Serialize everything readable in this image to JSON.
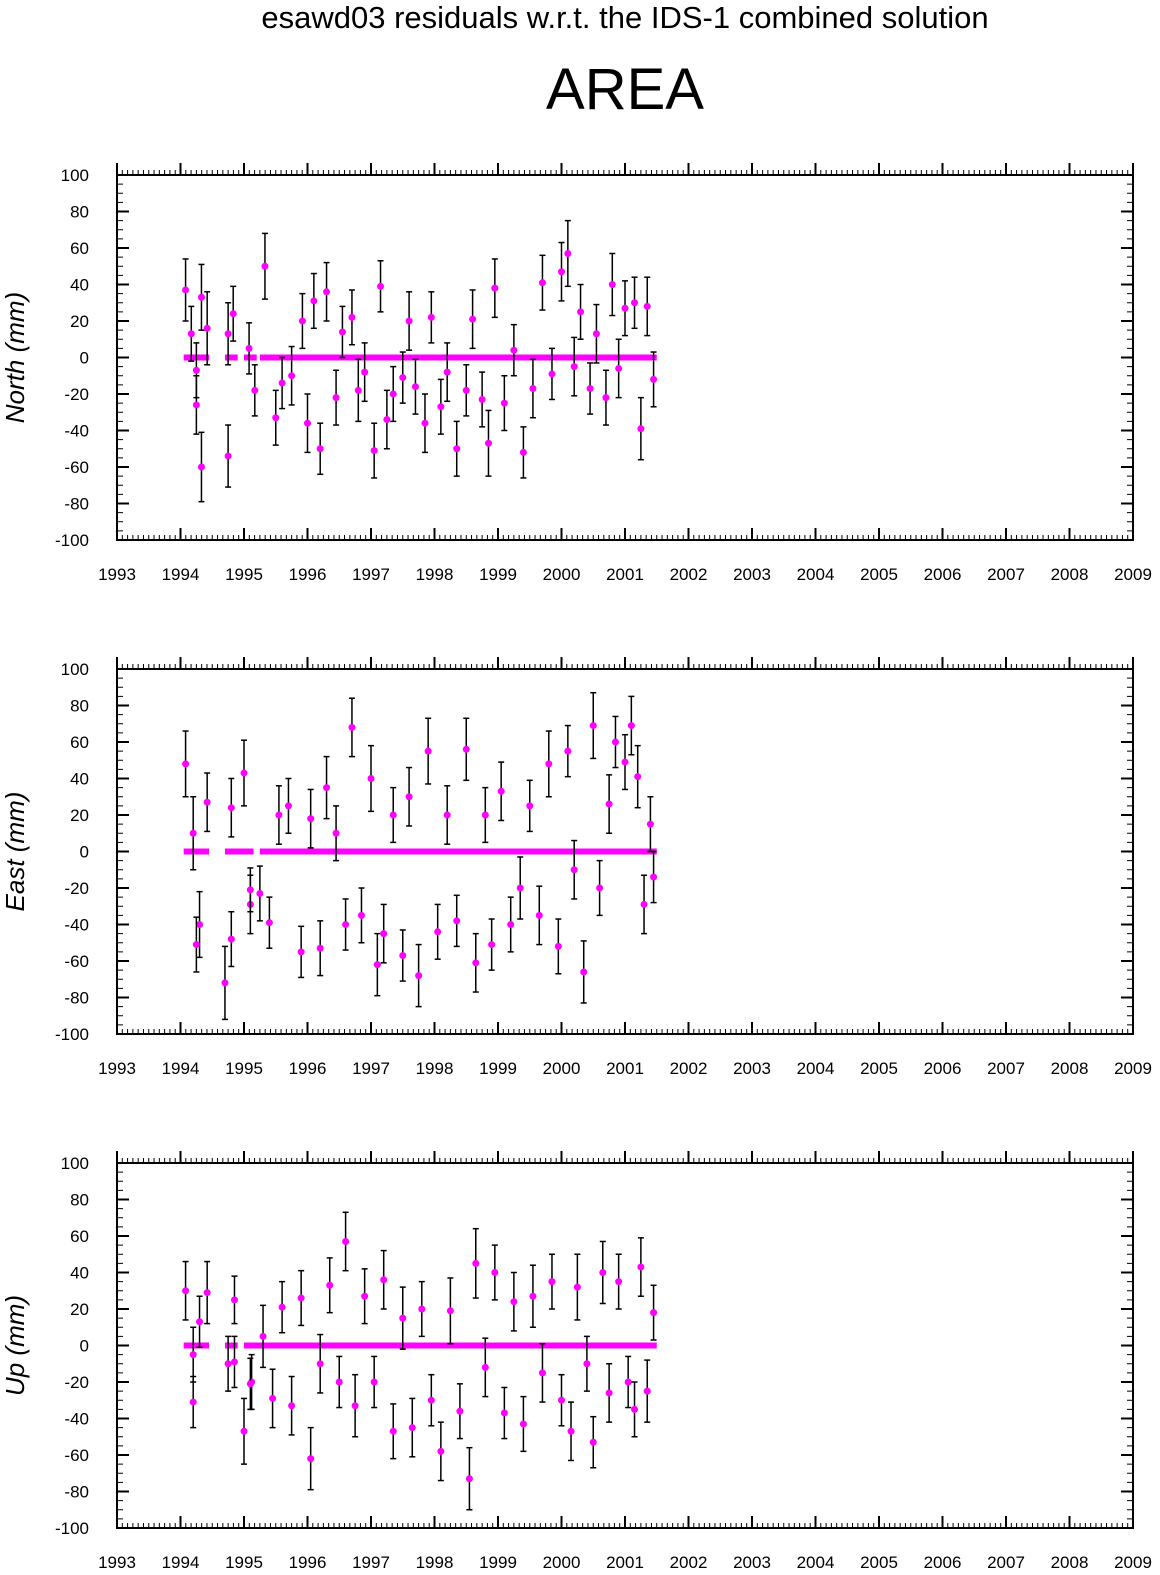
{
  "title": "esawd03 residuals w.r.t. the IDS-1 combined solution",
  "subtitle": "AREA",
  "colors": {
    "series": "#ff00ff",
    "errorbar": "#000000",
    "frame": "#000000"
  },
  "chart_data": [
    {
      "type": "scatter",
      "panel": "north",
      "ylabel": "North (mm)",
      "xlim": [
        1993,
        2009
      ],
      "ylim": [
        -100,
        100
      ],
      "xticks": [
        "1993",
        "1994",
        "1995",
        "1996",
        "1997",
        "1998",
        "1999",
        "2000",
        "2001",
        "2002",
        "2003",
        "2004",
        "2005",
        "2006",
        "2007",
        "2008",
        "2009"
      ],
      "yticks": [
        "100",
        "80",
        "60",
        "40",
        "20",
        "0",
        "-20",
        "-40",
        "-60",
        "-80",
        "-100"
      ],
      "series": [
        {
          "x": [
            1994.08,
            1994.17,
            1994.25,
            1994.33,
            1994.42,
            1994.75,
            1994.83,
            1995.08,
            1995.17,
            1995.33,
            1995.5,
            1995.6,
            1995.75,
            1995.92,
            1996.0,
            1996.1,
            1996.2,
            1996.3,
            1996.45,
            1996.55,
            1996.7,
            1996.8,
            1996.9,
            1997.05,
            1997.15,
            1997.25,
            1997.35,
            1997.5,
            1997.6,
            1997.7,
            1997.85,
            1997.95,
            1998.1,
            1998.2,
            1998.35,
            1998.5,
            1998.6,
            1998.75,
            1998.85,
            1998.95,
            1999.1,
            1999.25,
            1999.4,
            1999.55,
            1999.7,
            1999.85,
            2000.0,
            2000.1,
            2000.2,
            2000.3,
            2000.45,
            2000.55,
            2000.7,
            2000.8,
            2000.9,
            2001.0,
            2001.15,
            2001.25,
            2001.35,
            2001.45
          ],
          "y": [
            37,
            13,
            -26,
            33,
            16,
            13,
            24,
            5,
            -18,
            50,
            -33,
            -14,
            -10,
            20,
            -36,
            31,
            -50,
            36,
            -22,
            14,
            22,
            -18,
            -8,
            -51,
            39,
            -34,
            -20,
            -11,
            20,
            -16,
            -36,
            22,
            -27,
            -8,
            -50,
            -18,
            21,
            -23,
            -47,
            38,
            -25,
            4,
            -52,
            -17,
            41,
            -9,
            47,
            57,
            -5,
            25,
            -17,
            13,
            -22,
            40,
            -6,
            27,
            30,
            -39,
            28,
            -12
          ],
          "err": [
            17,
            15,
            16,
            18,
            20,
            17,
            15,
            14,
            14,
            18,
            15,
            14,
            16,
            15,
            16,
            15,
            14,
            16,
            15,
            14,
            15,
            17,
            16,
            15,
            14,
            16,
            15,
            14,
            16,
            15,
            16,
            14,
            15,
            16,
            15,
            14,
            16,
            15,
            18,
            16,
            15,
            14,
            14,
            16,
            15,
            14,
            16,
            18,
            16,
            15,
            14,
            16,
            15,
            17,
            16,
            15,
            14,
            17,
            16,
            15
          ]
        },
        {
          "x": [
            1994.25,
            1994.33,
            1994.75
          ],
          "y": [
            -7,
            -60,
            -54
          ],
          "err": [
            15,
            19,
            17
          ]
        }
      ],
      "zero_segments": [
        [
          1994.05,
          1994.45
        ],
        [
          1994.7,
          1994.9
        ],
        [
          1995.0,
          1995.2
        ],
        [
          1995.25,
          2001.5
        ]
      ]
    },
    {
      "type": "scatter",
      "panel": "east",
      "ylabel": "East (mm)",
      "xlim": [
        1993,
        2009
      ],
      "ylim": [
        -100,
        100
      ],
      "xticks": [
        "1993",
        "1994",
        "1995",
        "1996",
        "1997",
        "1998",
        "1999",
        "2000",
        "2001",
        "2002",
        "2003",
        "2004",
        "2005",
        "2006",
        "2007",
        "2008",
        "2009"
      ],
      "yticks": [
        "100",
        "80",
        "60",
        "40",
        "20",
        "0",
        "-20",
        "-40",
        "-60",
        "-80",
        "-100"
      ],
      "series": [
        {
          "x": [
            1994.08,
            1994.2,
            1994.3,
            1994.42,
            1994.7,
            1994.8,
            1995.0,
            1995.1,
            1995.25,
            1995.4,
            1995.55,
            1995.7,
            1995.9,
            1996.05,
            1996.2,
            1996.3,
            1996.45,
            1996.6,
            1996.7,
            1996.85,
            1997.0,
            1997.1,
            1997.2,
            1997.35,
            1997.5,
            1997.6,
            1997.75,
            1997.9,
            1998.05,
            1998.2,
            1998.35,
            1998.5,
            1998.65,
            1998.8,
            1998.9,
            1999.05,
            1999.2,
            1999.35,
            1999.5,
            1999.65,
            1999.8,
            1999.95,
            2000.1,
            2000.2,
            2000.35,
            2000.5,
            2000.6,
            2000.75,
            2000.85,
            2001.0,
            2001.1,
            2001.2,
            2001.3,
            2001.4,
            2001.45
          ],
          "y": [
            48,
            10,
            -40,
            27,
            -72,
            24,
            43,
            -29,
            -23,
            -39,
            20,
            25,
            -55,
            18,
            -53,
            35,
            10,
            -40,
            68,
            -35,
            40,
            -62,
            -45,
            20,
            -57,
            30,
            -68,
            55,
            -44,
            20,
            -38,
            56,
            -61,
            20,
            -51,
            33,
            -40,
            -20,
            25,
            -35,
            48,
            -52,
            55,
            -10,
            -66,
            69,
            -20,
            26,
            60,
            49,
            69,
            41,
            -29,
            15,
            -14
          ],
          "err": [
            18,
            20,
            18,
            16,
            20,
            16,
            18,
            16,
            15,
            14,
            16,
            15,
            14,
            16,
            15,
            17,
            15,
            14,
            16,
            15,
            18,
            17,
            16,
            15,
            14,
            16,
            17,
            18,
            15,
            16,
            14,
            17,
            16,
            15,
            14,
            16,
            15,
            17,
            14,
            16,
            18,
            15,
            14,
            16,
            17,
            18,
            15,
            16,
            14,
            15,
            16,
            17,
            16,
            15,
            14
          ]
        },
        {
          "x": [
            1994.25,
            1994.8,
            1995.1
          ],
          "y": [
            -51,
            -48,
            -21
          ],
          "err": [
            15,
            15,
            12
          ]
        }
      ],
      "zero_segments": [
        [
          1994.05,
          1994.45
        ],
        [
          1994.7,
          1995.15
        ],
        [
          1995.25,
          2001.5
        ]
      ]
    },
    {
      "type": "scatter",
      "panel": "up",
      "ylabel": "Up (mm)",
      "xlim": [
        1993,
        2009
      ],
      "ylim": [
        -100,
        100
      ],
      "xticks": [
        "1993",
        "1994",
        "1995",
        "1996",
        "1997",
        "1998",
        "1999",
        "2000",
        "2001",
        "2002",
        "2003",
        "2004",
        "2005",
        "2006",
        "2007",
        "2008",
        "2009"
      ],
      "yticks": [
        "100",
        "80",
        "60",
        "40",
        "20",
        "0",
        "-20",
        "-40",
        "-60",
        "-80",
        "-100"
      ],
      "series": [
        {
          "x": [
            1994.08,
            1994.2,
            1994.3,
            1994.42,
            1994.75,
            1994.85,
            1995.0,
            1995.12,
            1995.3,
            1995.45,
            1995.6,
            1995.75,
            1995.9,
            1996.05,
            1996.2,
            1996.35,
            1996.5,
            1996.6,
            1996.75,
            1996.9,
            1997.05,
            1997.2,
            1997.35,
            1997.5,
            1997.65,
            1997.8,
            1997.95,
            1998.1,
            1998.25,
            1998.4,
            1998.55,
            1998.65,
            1998.8,
            1998.95,
            1999.1,
            1999.25,
            1999.4,
            1999.55,
            1999.7,
            1999.85,
            2000.0,
            2000.15,
            2000.25,
            2000.4,
            2000.5,
            2000.65,
            2000.75,
            2000.9,
            2001.05,
            2001.15,
            2001.25,
            2001.35,
            2001.45
          ],
          "y": [
            30,
            -5,
            13,
            29,
            -10,
            25,
            -47,
            -20,
            5,
            -29,
            21,
            -33,
            26,
            -62,
            -10,
            33,
            -20,
            57,
            -33,
            27,
            -20,
            36,
            -47,
            15,
            -45,
            20,
            -30,
            -58,
            19,
            -36,
            -73,
            45,
            -12,
            40,
            -37,
            24,
            -43,
            27,
            -15,
            35,
            -30,
            -47,
            32,
            -10,
            -53,
            40,
            -26,
            35,
            -20,
            -35,
            43,
            -25,
            18
          ],
          "err": [
            16,
            15,
            14,
            17,
            15,
            13,
            18,
            15,
            17,
            16,
            14,
            16,
            15,
            17,
            16,
            15,
            14,
            16,
            17,
            15,
            14,
            16,
            15,
            17,
            16,
            15,
            14,
            16,
            18,
            15,
            17,
            19,
            16,
            15,
            14,
            16,
            15,
            17,
            16,
            15,
            14,
            16,
            18,
            15,
            14,
            17,
            16,
            15,
            14,
            15,
            16,
            17,
            15
          ]
        },
        {
          "x": [
            1994.2,
            1994.85,
            1995.1
          ],
          "y": [
            -31,
            -9,
            -21
          ],
          "err": [
            14,
            14,
            14
          ]
        }
      ],
      "zero_segments": [
        [
          1994.05,
          1994.45
        ],
        [
          1994.7,
          1994.9
        ],
        [
          1995.0,
          2001.5
        ]
      ]
    }
  ]
}
